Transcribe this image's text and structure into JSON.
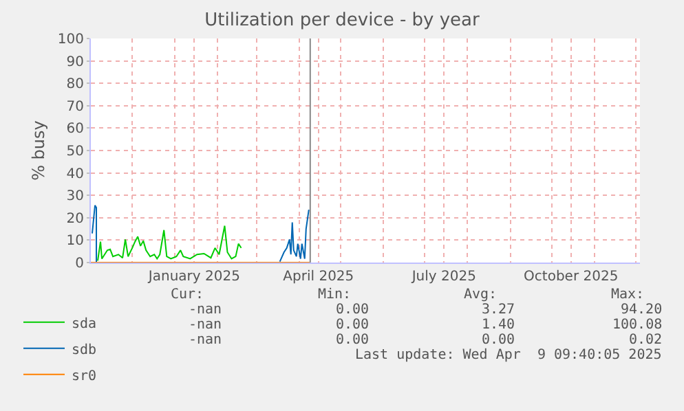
{
  "chart_data": {
    "type": "line",
    "title": "Utilization per device - by year",
    "ylabel": "% busy",
    "xlim": [
      "2024-11-01",
      "2025-12-04"
    ],
    "xticks": [
      {
        "value": "2024-11-01",
        "label": null
      },
      {
        "value": "2024-12-01",
        "label": null
      },
      {
        "value": "2025-01-01",
        "label": null
      },
      {
        "value": "2025-01-15",
        "label": "January 2025"
      },
      {
        "value": "2025-02-01",
        "label": null
      },
      {
        "value": "2025-03-01",
        "label": null
      },
      {
        "value": "2025-04-01",
        "label": null
      },
      {
        "value": "2025-04-15",
        "label": "April 2025"
      },
      {
        "value": "2025-05-01",
        "label": null
      },
      {
        "value": "2025-06-01",
        "label": null
      },
      {
        "value": "2025-07-01",
        "label": null
      },
      {
        "value": "2025-07-15",
        "label": "July 2025"
      },
      {
        "value": "2025-08-01",
        "label": null
      },
      {
        "value": "2025-09-01",
        "label": null
      },
      {
        "value": "2025-10-01",
        "label": null
      },
      {
        "value": "2025-10-15",
        "label": "October 2025"
      },
      {
        "value": "2025-11-01",
        "label": null
      },
      {
        "value": "2025-12-01",
        "label": null
      }
    ],
    "ylim": [
      0,
      100
    ],
    "yticks": [
      0,
      10,
      20,
      30,
      40,
      50,
      60,
      70,
      80,
      90,
      100
    ],
    "grid": true,
    "legend": "bottom",
    "marker": "none",
    "line_style": "solid",
    "series": [
      {
        "name": "sda",
        "color": "#00cc00",
        "x": [
          "2024-11-06",
          "2024-11-08",
          "2024-11-09",
          "2024-11-13",
          "2024-11-15",
          "2024-11-17",
          "2024-11-21",
          "2024-11-24",
          "2024-11-26",
          "2024-11-28",
          "2024-12-01",
          "2024-12-03",
          "2024-12-05",
          "2024-12-07",
          "2024-12-09",
          "2024-12-11",
          "2024-12-14",
          "2024-12-17",
          "2024-12-19",
          "2024-12-21",
          "2024-12-24",
          "2024-12-26",
          "2024-12-29",
          "2025-01-02",
          "2025-01-05",
          "2025-01-07",
          "2025-01-12",
          "2025-01-17",
          "2025-01-22",
          "2025-01-27",
          "2025-01-30",
          "2025-02-02",
          "2025-02-06",
          "2025-02-08",
          "2025-02-11",
          "2025-02-14",
          "2025-02-16",
          "2025-02-18"
        ],
        "values": [
          0.8,
          9.3,
          1.7,
          5.5,
          5.9,
          2.7,
          3.6,
          2.1,
          10.3,
          2.7,
          6.5,
          9.3,
          11.6,
          7.4,
          9.7,
          5.5,
          2.7,
          3.6,
          1.7,
          3.6,
          14.5,
          2.7,
          1.7,
          2.7,
          5.5,
          2.7,
          1.7,
          3.6,
          4.0,
          2.1,
          6.5,
          3.6,
          16.4,
          4.6,
          1.7,
          2.7,
          8.4,
          6.5
        ]
      },
      {
        "name": "sdb",
        "color": "#0066b3",
        "x": [
          "2024-11-02",
          "2024-11-04",
          "2024-11-05",
          "2024-11-05",
          null,
          "2025-03-18",
          "2025-03-21",
          "2025-03-23",
          "2025-03-25",
          "2025-03-26",
          "2025-03-27",
          "2025-03-28",
          "2025-03-30",
          "2025-03-31",
          "2025-04-02",
          "2025-04-03",
          "2025-04-05",
          "2025-04-06",
          "2025-04-08"
        ],
        "values": [
          13.0,
          25.5,
          24.5,
          0,
          null,
          0.4,
          4.6,
          6.5,
          10.3,
          3.6,
          17.9,
          5.5,
          2.7,
          8.4,
          1.7,
          8.4,
          1.7,
          15.0,
          23.6
        ]
      },
      {
        "name": "sr0",
        "color": "#ff8000",
        "x": [
          "2024-11-01",
          "2025-04-09"
        ],
        "values": [
          0,
          0
        ]
      }
    ],
    "ref_lines": [
      {
        "axis": "x",
        "value": "2025-04-09",
        "color": "#888888"
      }
    ],
    "annotations": [
      "Cur:",
      "Min:",
      "Avg:",
      "Max:",
      "-nan",
      "0.00",
      "3.27",
      "94.20",
      "-nan",
      "0.00",
      "1.40",
      "100.08",
      "-nan",
      "0.00",
      "0.00",
      "0.02",
      "Last update: Wed Apr  9 09:40:05 2025"
    ]
  }
}
